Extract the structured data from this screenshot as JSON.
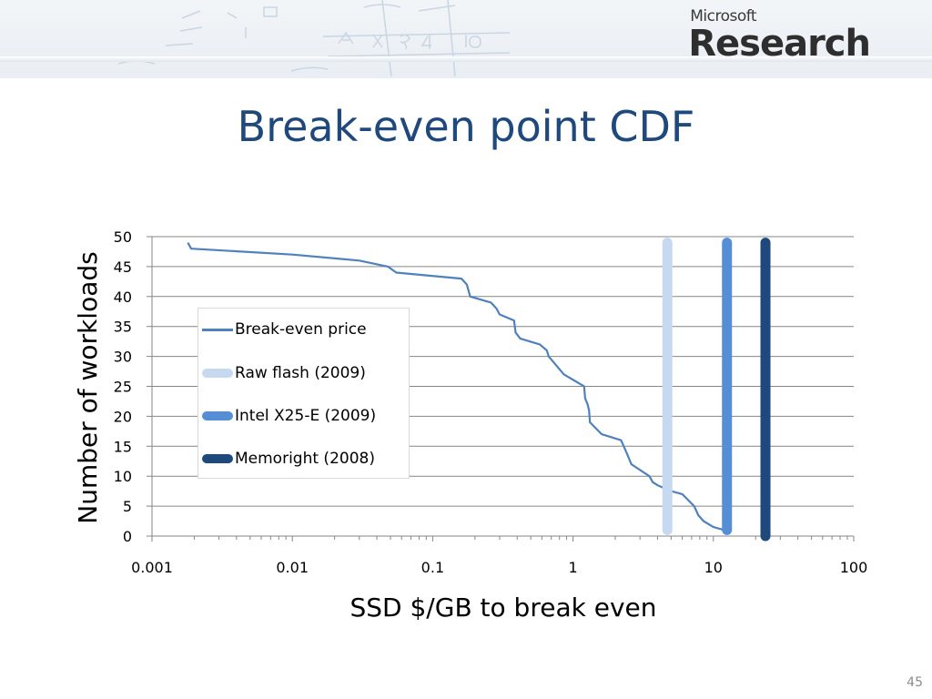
{
  "slide": {
    "title": "Break-even point CDF",
    "page_number": "45",
    "logo": {
      "small": "Microsoft",
      "big": "Research"
    }
  },
  "chart_data": {
    "type": "line",
    "title": "",
    "xlabel": "SSD $/GB to break even",
    "ylabel": "Number of workloads",
    "x_scale": "log",
    "xlim": [
      0.001,
      100
    ],
    "ylim": [
      0,
      50
    ],
    "x_ticks": [
      0.001,
      0.01,
      0.1,
      1,
      10,
      100
    ],
    "x_tick_labels": [
      "0.001",
      "0.01",
      "0.1",
      "1",
      "10",
      "100"
    ],
    "y_ticks": [
      0,
      5,
      10,
      15,
      20,
      25,
      30,
      35,
      40,
      45,
      50
    ],
    "y_tick_labels": [
      "0",
      "5",
      "10",
      "15",
      "20",
      "25",
      "30",
      "35",
      "40",
      "45",
      "50"
    ],
    "grid": true,
    "legend_position": "left-middle",
    "series": [
      {
        "name": "Break-even price",
        "kind": "line",
        "color": "#4f81bd",
        "points": [
          [
            0.0018,
            49
          ],
          [
            0.0019,
            48
          ],
          [
            0.01,
            47
          ],
          [
            0.03,
            46
          ],
          [
            0.048,
            45
          ],
          [
            0.055,
            44
          ],
          [
            0.16,
            43
          ],
          [
            0.175,
            42
          ],
          [
            0.185,
            40
          ],
          [
            0.26,
            39
          ],
          [
            0.285,
            38
          ],
          [
            0.3,
            37
          ],
          [
            0.38,
            36
          ],
          [
            0.39,
            34
          ],
          [
            0.42,
            33
          ],
          [
            0.58,
            32
          ],
          [
            0.65,
            31
          ],
          [
            0.67,
            30
          ],
          [
            0.86,
            27
          ],
          [
            1.2,
            25
          ],
          [
            1.22,
            23
          ],
          [
            1.27,
            22
          ],
          [
            1.3,
            21
          ],
          [
            1.32,
            19
          ],
          [
            1.6,
            17
          ],
          [
            2.2,
            16
          ],
          [
            2.4,
            14
          ],
          [
            2.5,
            13
          ],
          [
            2.6,
            12
          ],
          [
            3.5,
            10
          ],
          [
            3.7,
            9
          ],
          [
            4.0,
            8.5
          ],
          [
            5.0,
            7.5
          ],
          [
            6.0,
            7
          ],
          [
            7.3,
            5
          ],
          [
            7.8,
            3.5
          ],
          [
            8.5,
            2.5
          ],
          [
            10.0,
            1.5
          ],
          [
            12.0,
            1
          ]
        ]
      },
      {
        "name": "Raw flash (2009)",
        "kind": "vline",
        "x": 4.7,
        "y_range": [
          1,
          49
        ],
        "color": "#c6d9f0"
      },
      {
        "name": "Intel X25-E (2009)",
        "kind": "vline",
        "x": 12.5,
        "y_range": [
          1,
          49
        ],
        "color": "#558ed5"
      },
      {
        "name": "Memoright (2008)",
        "kind": "vline",
        "x": 23.5,
        "y_range": [
          0,
          49
        ],
        "color": "#1f497d"
      }
    ]
  }
}
